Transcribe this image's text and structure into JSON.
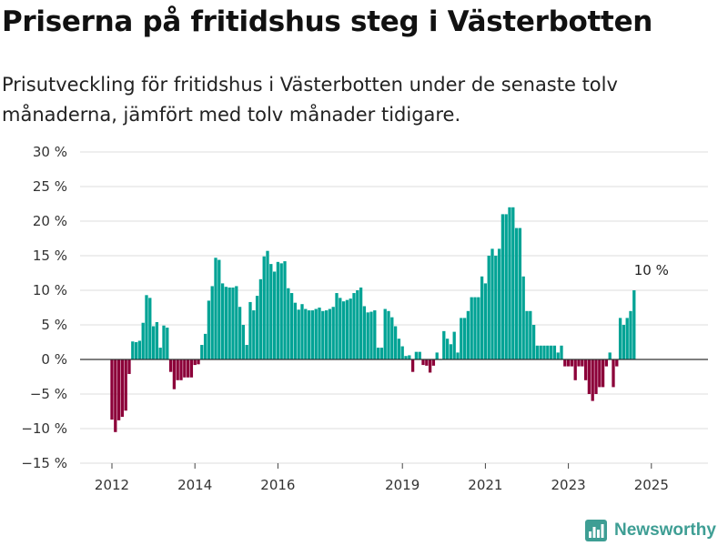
{
  "header": {
    "title": "Priserna på fritidshus steg i Västerbotten",
    "subtitle": "Prisutveckling för fritidshus i Västerbotten under de senaste tolv månaderna, jämfört med tolv månader tidigare."
  },
  "brand": {
    "name": "Newsworthy",
    "color": "#3e9e94",
    "icon": "bar-chart-logo-icon"
  },
  "colors": {
    "positive": "#00a395",
    "negative": "#8c0039",
    "grid": "#dddddd",
    "zero_line": "#333333"
  },
  "chart_data": {
    "type": "bar",
    "title": "Priserna på fritidshus steg i Västerbotten",
    "ylim": [
      -15,
      30
    ],
    "y_ticks": [
      -15,
      -10,
      -5,
      0,
      5,
      10,
      15,
      20,
      25,
      30
    ],
    "y_tick_labels": [
      "−15 %",
      "−10 %",
      "−5 %",
      "0 %",
      "5 %",
      "10 %",
      "15 %",
      "20 %",
      "25 %",
      "30 %"
    ],
    "x_tick_labels": [
      {
        "label": "2012",
        "date": "2012-01"
      },
      {
        "label": "2014",
        "date": "2014-01"
      },
      {
        "label": "2016",
        "date": "2016-01"
      },
      {
        "label": "2019",
        "date": "2019-01"
      },
      {
        "label": "2021",
        "date": "2021-01"
      },
      {
        "label": "2023",
        "date": "2023-01"
      },
      {
        "label": "2025",
        "date": "2025-01"
      }
    ],
    "grid": true,
    "unit": "%",
    "annotation": {
      "text": "10 %",
      "date": "2025-01",
      "value": 10
    },
    "series": [
      {
        "start": "2012-01",
        "frequency": "monthly",
        "values": [
          -8.7,
          -10.5,
          -8.8,
          -8.3,
          -7.4,
          -2.1,
          2.6,
          2.5,
          2.7,
          5.3,
          9.3,
          8.9,
          4.8,
          5.4,
          1.7,
          4.9,
          4.6,
          -1.8,
          -4.3,
          -3.0,
          -3.0,
          -2.6,
          -2.6,
          -2.6,
          -0.8,
          -0.7,
          2.1,
          3.7,
          8.5,
          10.6,
          14.7,
          14.4,
          11.0,
          10.5,
          10.4,
          10.4,
          10.6,
          7.6,
          5.0,
          2.1,
          8.3,
          7.1,
          9.2,
          11.6,
          14.9,
          15.7,
          13.8,
          12.7,
          14.1,
          13.9,
          14.2,
          10.3,
          9.6,
          8.2,
          7.2,
          8.0,
          7.3,
          7.1,
          7.1,
          7.3,
          7.5,
          7.0,
          7.1,
          7.3,
          7.6,
          9.6,
          8.9,
          8.4,
          8.6,
          8.8,
          9.6,
          10.0,
          10.4,
          7.7,
          6.8,
          6.9,
          7.1,
          1.7,
          1.7,
          7.3,
          7.0,
          6.1,
          4.8,
          3.0,
          1.9,
          0.5,
          0.6,
          -1.8,
          1.1,
          1.1,
          -0.8,
          -0.9,
          -1.9,
          -0.9,
          1.0,
          0.0,
          4.1,
          3.0,
          2.2,
          4.0,
          1.0,
          6.0,
          6.0,
          7.0,
          9.0,
          9.0,
          9.0,
          12.0,
          11.0,
          15.0,
          16.0,
          15.0,
          16.0,
          21.0,
          21.0,
          22.0,
          22.0,
          19.0,
          19.0,
          12.0,
          7.0,
          7.0,
          5.0,
          2.0,
          2.0,
          2.0,
          2.0,
          2.0,
          2.0,
          1.0,
          2.0,
          -1.0,
          -1.0,
          -1.0,
          -3.0,
          -1.0,
          -1.0,
          -3.0,
          -5.0,
          -6.0,
          -5.0,
          -4.0,
          -4.0,
          -1.0,
          1.0,
          -4.0,
          -1.0,
          6.0,
          5.0,
          6.0,
          7.0,
          10.0
        ]
      }
    ]
  }
}
